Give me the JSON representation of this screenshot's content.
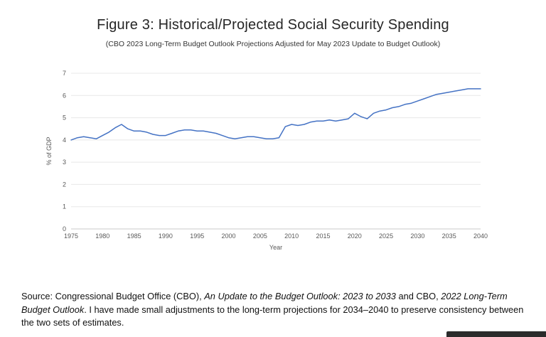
{
  "figure": {
    "title": "Figure 3: Historical/Projected Social Security Spending",
    "subtitle": "(CBO 2023 Long-Term Budget Outlook Projections Adjusted for May 2023 Update to Budget Outlook)"
  },
  "chart_data": {
    "type": "line",
    "title": "Figure 3: Historical/Projected Social Security Spending",
    "subtitle": "(CBO 2023 Long-Term Budget Outlook Projections Adjusted for May 2023 Update to Budget Outlook)",
    "xlabel": "Year",
    "ylabel": "% of GDP",
    "xlim": [
      1975,
      2040
    ],
    "ylim": [
      0,
      7
    ],
    "x_ticks": [
      1975,
      1980,
      1985,
      1990,
      1995,
      2000,
      2005,
      2010,
      2015,
      2020,
      2025,
      2030,
      2035,
      2040
    ],
    "y_ticks": [
      0,
      1,
      2,
      3,
      4,
      5,
      6,
      7
    ],
    "grid": "horizontal",
    "legend": "none",
    "line_color": "#4472c4",
    "series": [
      {
        "name": "Social Security spending (% of GDP)",
        "x": [
          1975,
          1976,
          1977,
          1978,
          1979,
          1980,
          1981,
          1982,
          1983,
          1984,
          1985,
          1986,
          1987,
          1988,
          1989,
          1990,
          1991,
          1992,
          1993,
          1994,
          1995,
          1996,
          1997,
          1998,
          1999,
          2000,
          2001,
          2002,
          2003,
          2004,
          2005,
          2006,
          2007,
          2008,
          2009,
          2010,
          2011,
          2012,
          2013,
          2014,
          2015,
          2016,
          2017,
          2018,
          2019,
          2020,
          2021,
          2022,
          2023,
          2024,
          2025,
          2026,
          2027,
          2028,
          2029,
          2030,
          2031,
          2032,
          2033,
          2034,
          2035,
          2036,
          2037,
          2038,
          2039,
          2040
        ],
        "values": [
          4.0,
          4.1,
          4.15,
          4.1,
          4.05,
          4.2,
          4.35,
          4.55,
          4.7,
          4.5,
          4.4,
          4.4,
          4.35,
          4.25,
          4.2,
          4.2,
          4.3,
          4.4,
          4.45,
          4.45,
          4.4,
          4.4,
          4.35,
          4.3,
          4.2,
          4.1,
          4.05,
          4.1,
          4.15,
          4.15,
          4.1,
          4.05,
          4.05,
          4.1,
          4.6,
          4.7,
          4.65,
          4.7,
          4.8,
          4.85,
          4.85,
          4.9,
          4.85,
          4.9,
          4.95,
          5.2,
          5.05,
          4.95,
          5.2,
          5.3,
          5.35,
          5.45,
          5.5,
          5.6,
          5.65,
          5.75,
          5.85,
          5.95,
          6.05,
          6.1,
          6.15,
          6.2,
          6.25,
          6.3,
          6.3,
          6.3
        ]
      }
    ]
  },
  "source_note": {
    "segments": [
      {
        "text": "Source: Congressional Budget Office (CBO), ",
        "italic": false
      },
      {
        "text": "An Update to the Budget Outlook: 2023 to 2033",
        "italic": true
      },
      {
        "text": " and CBO, ",
        "italic": false
      },
      {
        "text": "2022 Long-Term Budget Outlook",
        "italic": true
      },
      {
        "text": ". I have made small adjustments to the long-term projections for 2034–2040 to preserve consistency between the two sets of estimates.",
        "italic": false
      }
    ]
  },
  "colors": {
    "line": "#4472c4",
    "gridline": "#e8e8e8",
    "axis": "#c9c9c9",
    "tick_text": "#595959",
    "bottom_bar": "#2b2b2b"
  }
}
